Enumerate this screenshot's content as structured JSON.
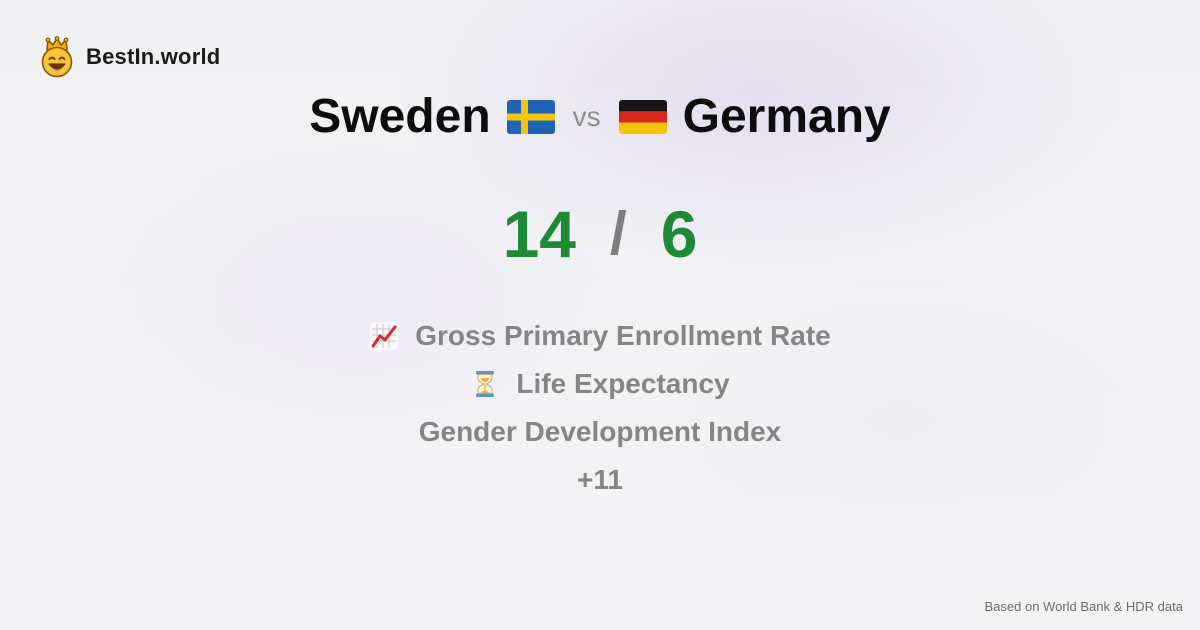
{
  "brand": {
    "name": "BestIn.world",
    "logo_icon": "crowned-smiley-icon"
  },
  "comparison": {
    "left_country": "Sweden",
    "right_country": "Germany",
    "vs_label": "vs",
    "left_flag_icon": "sweden-flag-icon",
    "right_flag_icon": "germany-flag-icon"
  },
  "score": {
    "left": "14",
    "separator": "/",
    "right": "6",
    "color": "#1f8a36"
  },
  "metrics": [
    {
      "label": "Gross Primary Enrollment Rate",
      "icon": "chart-increasing-icon"
    },
    {
      "label": "Life Expectancy",
      "icon": "hourglass-icon"
    },
    {
      "label": "Gender Development Index",
      "icon": ""
    }
  ],
  "more_label": "+11",
  "footer": {
    "source": "Based on World Bank & HDR data"
  }
}
